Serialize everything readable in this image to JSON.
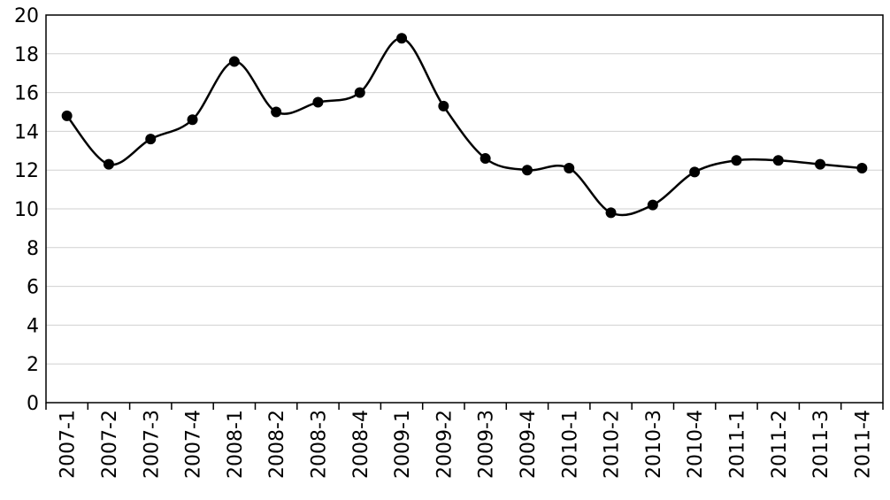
{
  "chart_data": {
    "type": "line",
    "categories": [
      "2007-1",
      "2007-2",
      "2007-3",
      "2007-4",
      "2008-1",
      "2008-2",
      "2008-3",
      "2008-4",
      "2009-1",
      "2009-2",
      "2009-3",
      "2009-4",
      "2010-1",
      "2010-2",
      "2010-3",
      "2010-4",
      "2011-1",
      "2011-2",
      "2011-3",
      "2011-4"
    ],
    "values": [
      14.8,
      12.3,
      13.6,
      14.6,
      17.6,
      15.0,
      15.5,
      16.0,
      18.8,
      15.3,
      12.6,
      12.0,
      12.1,
      9.8,
      10.2,
      11.9,
      12.5,
      12.5,
      12.3,
      12.1
    ],
    "color": "#000000",
    "ylim": [
      0,
      20
    ],
    "yticks": [
      0,
      2,
      4,
      6,
      8,
      10,
      12,
      14,
      16,
      18,
      20
    ],
    "grid": true
  }
}
